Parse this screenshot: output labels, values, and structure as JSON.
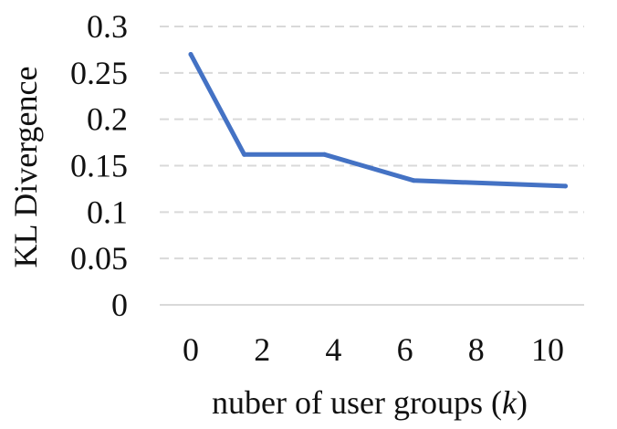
{
  "chart_data": {
    "type": "line",
    "title": "",
    "xlabel_prefix": "nuber of user groups (",
    "xlabel_var": "k",
    "xlabel_suffix": ")",
    "ylabel": "KL Divergence",
    "x": [
      0,
      2,
      4,
      6,
      8,
      10
    ],
    "x_ticks": [
      "0",
      "2",
      "4",
      "6",
      "8",
      "10"
    ],
    "y_ticks": [
      "0",
      "0.05",
      "0.1",
      "0.15",
      "0.2",
      "0.25",
      "0.3"
    ],
    "y_tick_values": [
      0,
      0.05,
      0.1,
      0.15,
      0.2,
      0.25,
      0.3
    ],
    "ylim": [
      0,
      0.3
    ],
    "grid": true,
    "series": [
      {
        "color": "#4472C4",
        "points": [
          {
            "x": 0,
            "y": 0.27
          },
          {
            "x": 1.5,
            "y": 0.162
          },
          {
            "x": 3.75,
            "y": 0.162
          },
          {
            "x": 6.25,
            "y": 0.134
          },
          {
            "x": 10.5,
            "y": 0.128
          }
        ]
      }
    ]
  }
}
